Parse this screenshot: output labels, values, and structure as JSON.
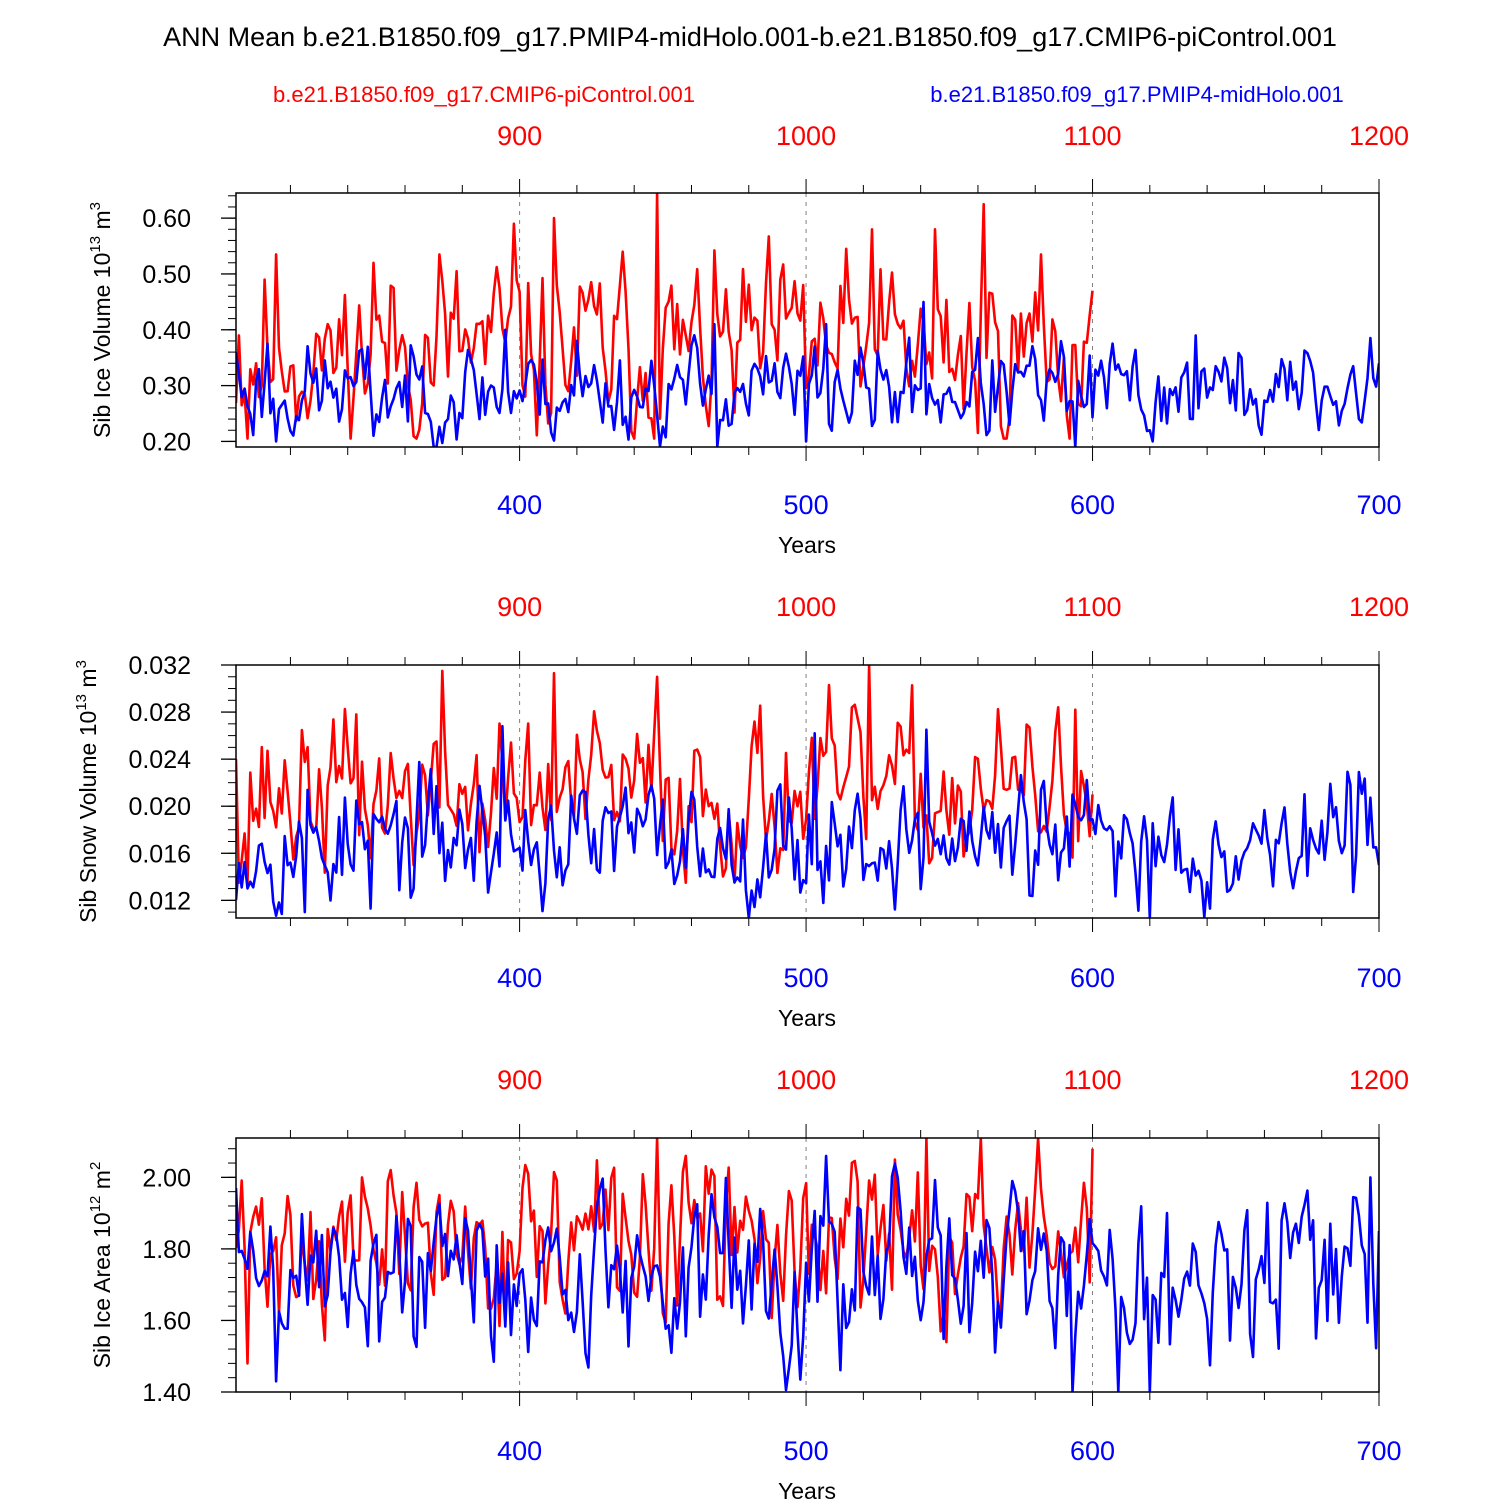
{
  "title": "ANN Mean b.e21.B1850.f09_g17.PMIP4-midHolo.001-b.e21.B1850.f09_g17.CMIP6-piControl.001",
  "legend": {
    "ctrl": "b.e21.B1850.f09_g17.CMIP6-piControl.001",
    "case": "b.e21.B1850.f09_g17.PMIP4-midHolo.001"
  },
  "colors": {
    "ctrl": "#ff0000",
    "case": "#0000ff",
    "axis": "#000000",
    "grid": "#808080"
  },
  "chart_data": [
    {
      "type": "line",
      "ylabel_main": "Sib Ice Volume 10",
      "ylabel_exp": "13",
      "ylabel_unit": " m",
      "ylabel_unit_exp": "3",
      "xlabel": "Years",
      "xlim": [
        301,
        700
      ],
      "ylim": [
        0.19,
        0.645
      ],
      "yticks": [
        0.2,
        0.3,
        0.4,
        0.5,
        0.6
      ],
      "ytick_labels": [
        "0.20",
        "0.30",
        "0.40",
        "0.50",
        "0.60"
      ],
      "yminor": 0.02,
      "xticks_bottom": [
        400,
        500,
        600,
        700
      ],
      "xtick_labels_bottom": [
        "400",
        "500",
        "600",
        "700"
      ],
      "xtick_labels_top": [
        "900",
        "1000",
        "1100",
        "1200"
      ],
      "xminor": 20,
      "grid_x": [
        400,
        500,
        600
      ],
      "series": [
        {
          "name": "b.e21.B1850.f09_g17.CMIP6-piControl.001",
          "color": "#ff0000",
          "x_start": 301,
          "x_end": 600,
          "seed": 11,
          "mean": 0.36,
          "amp": 0.085,
          "min": 0.205,
          "max": 0.645,
          "peaks": [
            [
              302,
              0.39
            ],
            [
              305,
              0.205
            ],
            [
              311,
              0.49
            ],
            [
              315,
              0.535
            ],
            [
              319,
              0.29
            ],
            [
              333,
              0.41
            ],
            [
              349,
              0.52
            ],
            [
              372,
              0.535
            ],
            [
              398,
              0.59
            ],
            [
              412,
              0.6
            ],
            [
              448,
              0.645
            ],
            [
              499,
              0.48
            ],
            [
              523,
              0.58
            ],
            [
              545,
              0.58
            ],
            [
              560,
              0.215
            ],
            [
              562,
              0.625
            ],
            [
              582,
              0.535
            ],
            [
              600,
              0.47
            ]
          ]
        },
        {
          "name": "b.e21.B1850.f09_g17.PMIP4-midHolo.001",
          "color": "#0000ff",
          "x_start": 301,
          "x_end": 700,
          "seed": 23,
          "mean": 0.29,
          "amp": 0.045,
          "min": 0.19,
          "max": 0.45,
          "peaks": [
            [
              301,
              0.36
            ],
            [
              315,
              0.2
            ],
            [
              312,
              0.375
            ],
            [
              349,
              0.21
            ],
            [
              395,
              0.4
            ],
            [
              420,
              0.38
            ],
            [
              468,
              0.41
            ],
            [
              500,
              0.2
            ],
            [
              507,
              0.41
            ],
            [
              541,
              0.45
            ],
            [
              594,
              0.19
            ],
            [
              621,
              0.2
            ],
            [
              636,
              0.39
            ],
            [
              697,
              0.385
            ],
            [
              700,
              0.34
            ]
          ]
        }
      ]
    },
    {
      "type": "line",
      "ylabel_main": "Sib Snow Volume 10",
      "ylabel_exp": "13",
      "ylabel_unit": " m",
      "ylabel_unit_exp": "3",
      "xlabel": "Years",
      "xlim": [
        301,
        700
      ],
      "ylim": [
        0.0105,
        0.032
      ],
      "yticks": [
        0.012,
        0.016,
        0.02,
        0.024,
        0.028,
        0.032
      ],
      "ytick_labels": [
        "0.012",
        "0.016",
        "0.020",
        "0.024",
        "0.028",
        "0.032"
      ],
      "yminor": 0.001,
      "xticks_bottom": [
        400,
        500,
        600,
        700
      ],
      "xtick_labels_bottom": [
        "400",
        "500",
        "600",
        "700"
      ],
      "xtick_labels_top": [
        "900",
        "1000",
        "1100",
        "1200"
      ],
      "xminor": 20,
      "grid_x": [
        400,
        500,
        600
      ],
      "series": [
        {
          "name": "b.e21.B1850.f09_g17.CMIP6-piControl.001",
          "color": "#ff0000",
          "x_start": 301,
          "x_end": 600,
          "seed": 37,
          "mean": 0.021,
          "amp": 0.0035,
          "min": 0.0135,
          "max": 0.032,
          "peaks": [
            [
              301,
              0.024
            ],
            [
              305,
              0.0135
            ],
            [
              343,
              0.0278
            ],
            [
              373,
              0.0315
            ],
            [
              412,
              0.0313
            ],
            [
              448,
              0.031
            ],
            [
              522,
              0.032
            ],
            [
              594,
              0.0282
            ],
            [
              600,
              0.021
            ]
          ]
        },
        {
          "name": "b.e21.B1850.f09_g17.PMIP4-midHolo.001",
          "color": "#0000ff",
          "x_start": 301,
          "x_end": 700,
          "seed": 53,
          "mean": 0.017,
          "amp": 0.0028,
          "min": 0.0105,
          "max": 0.0268,
          "peaks": [
            [
              325,
              0.011
            ],
            [
              348,
              0.0113
            ],
            [
              394,
              0.0268
            ],
            [
              503,
              0.0262
            ],
            [
              542,
              0.0265
            ],
            [
              620,
              0.0105
            ],
            [
              693,
              0.0229
            ],
            [
              700,
              0.015
            ]
          ]
        }
      ]
    },
    {
      "type": "line",
      "ylabel_main": "Sib Ice Area 10",
      "ylabel_exp": "12",
      "ylabel_unit": " m",
      "ylabel_unit_exp": "2",
      "xlabel": "Years",
      "xlim": [
        301,
        700
      ],
      "ylim": [
        1.4,
        2.11
      ],
      "yticks": [
        1.4,
        1.6,
        1.8,
        2.0
      ],
      "ytick_labels": [
        "1.40",
        "1.60",
        "1.80",
        "2.00"
      ],
      "yminor": 0.04,
      "xticks_bottom": [
        400,
        500,
        600,
        700
      ],
      "xtick_labels_bottom": [
        "400",
        "500",
        "600",
        "700"
      ],
      "xtick_labels_top": [
        "900",
        "1000",
        "1100",
        "1200"
      ],
      "xminor": 20,
      "grid_x": [
        400,
        500,
        600
      ],
      "series": [
        {
          "name": "b.e21.B1850.f09_g17.CMIP6-piControl.001",
          "color": "#ff0000",
          "x_start": 301,
          "x_end": 600,
          "seed": 71,
          "mean": 1.82,
          "amp": 0.12,
          "min": 1.48,
          "max": 2.11,
          "peaks": [
            [
              305,
              1.48
            ],
            [
              448,
              2.11
            ],
            [
              542,
              2.11
            ],
            [
              561,
              2.11
            ],
            [
              600,
              2.08
            ]
          ]
        },
        {
          "name": "b.e21.B1850.f09_g17.PMIP4-midHolo.001",
          "color": "#0000ff",
          "x_start": 301,
          "x_end": 700,
          "seed": 89,
          "mean": 1.73,
          "amp": 0.13,
          "min": 1.4,
          "max": 2.06,
          "peaks": [
            [
              301,
              1.97
            ],
            [
              315,
              1.43
            ],
            [
              593,
              1.4
            ],
            [
              620,
              1.4
            ],
            [
              697,
              2.0
            ],
            [
              700,
              1.85
            ]
          ]
        }
      ]
    }
  ]
}
